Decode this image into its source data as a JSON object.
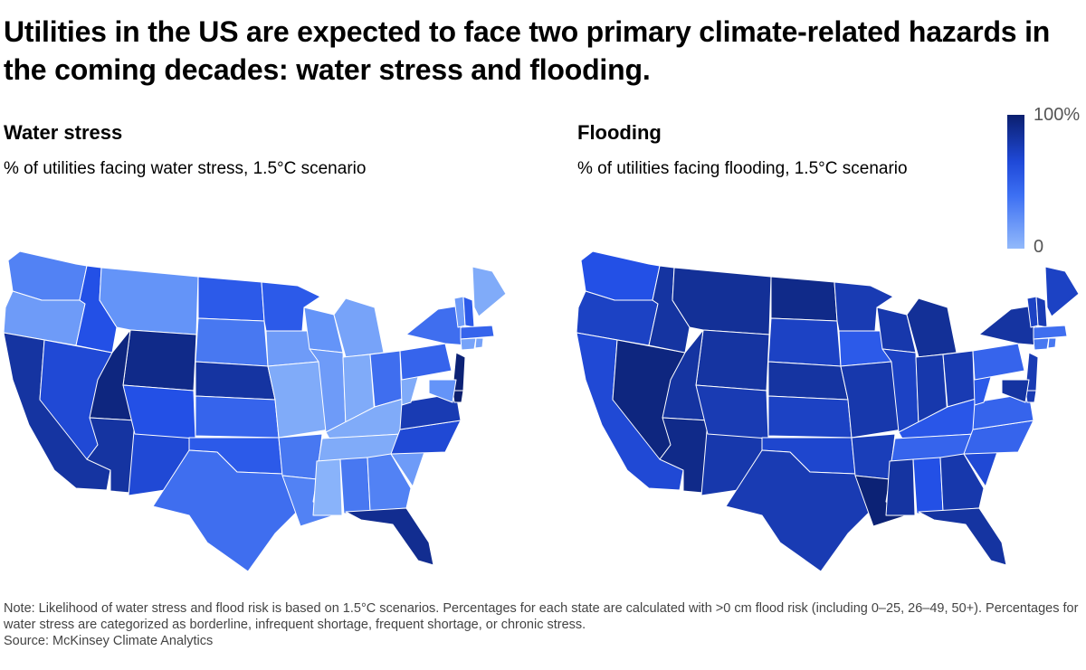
{
  "title": "Utilities in the US are expected to face two primary climate-related hazards in the coming decades: water stress and flooding.",
  "panels": {
    "water": {
      "title": "Water stress",
      "subtitle": "% of utilities facing water stress, 1.5°C scenario"
    },
    "flood": {
      "title": "Flooding",
      "subtitle": "% of utilities facing flooding, 1.5°C scenario"
    }
  },
  "legend": {
    "max_label": "100%",
    "min_label": "0"
  },
  "colors": {
    "scale_dark": "#0b1f6e",
    "scale_mid": "#2350e6",
    "scale_light": "#9cc2fb"
  },
  "notes": {
    "note": "Note: Likelihood of water stress and flood risk is based on 1.5°C scenarios. Percentages for each state are calculated with >0 cm flood risk (including 0–25, 26–49, 50+). Percentages for water stress are categorized as borderline, infrequent shortage, frequent shortage, or chronic stress.",
    "source": "Source: McKinsey Climate Analytics"
  },
  "maps": {
    "water": {
      "WA": 40,
      "OR": 25,
      "CA": 85,
      "NV": 70,
      "ID": 65,
      "MT": 30,
      "WY": 92,
      "UT": 95,
      "AZ": 85,
      "NM": 70,
      "CO": 65,
      "ND": 60,
      "SD": 45,
      "NE": 85,
      "KS": 55,
      "OK": 60,
      "TX": 50,
      "MN": 60,
      "IA": 25,
      "MO": 15,
      "AR": 45,
      "LA": 40,
      "WI": 30,
      "IL": 25,
      "MI": 20,
      "IN": 15,
      "OH": 50,
      "KY": 15,
      "TN": 15,
      "MS": 10,
      "AL": 45,
      "GA": 40,
      "FL": 90,
      "SC": 25,
      "NC": 70,
      "VA": 80,
      "WV": 15,
      "PA": 55,
      "NY": 50,
      "VT": 25,
      "NH": 60,
      "ME": 15,
      "MA": 55,
      "CT": 20,
      "RI": 20,
      "NJ": 98,
      "DE": 100,
      "MD": 30
    },
    "flood": {
      "WA": 65,
      "OR": 75,
      "CA": 70,
      "NV": 95,
      "ID": 85,
      "MT": 88,
      "WY": 85,
      "UT": 85,
      "AZ": 92,
      "NM": 82,
      "CO": 80,
      "ND": 92,
      "SD": 75,
      "NE": 85,
      "KS": 75,
      "OK": 72,
      "TX": 80,
      "MN": 80,
      "IA": 60,
      "MO": 82,
      "AR": 78,
      "LA": 98,
      "WI": 82,
      "IL": 75,
      "MI": 88,
      "IN": 82,
      "OH": 80,
      "KY": 62,
      "TN": 55,
      "MS": 85,
      "AL": 65,
      "GA": 82,
      "FL": 85,
      "SC": 70,
      "NC": 55,
      "VA": 55,
      "WV": 60,
      "PA": 55,
      "NY": 85,
      "VT": 75,
      "NH": 80,
      "ME": 75,
      "MA": 50,
      "CT": 45,
      "RI": 45,
      "NJ": 80,
      "DE": 80,
      "MD": 85
    }
  }
}
